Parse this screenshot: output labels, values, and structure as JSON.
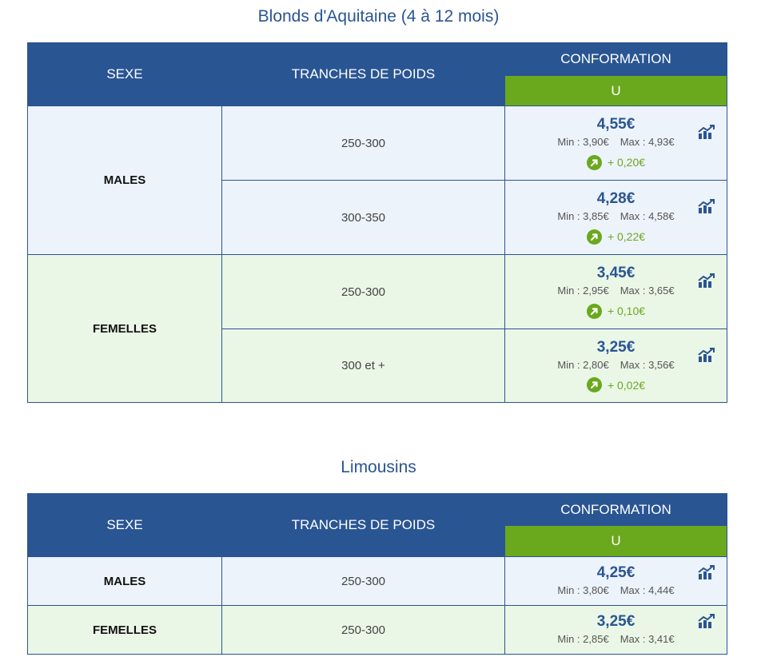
{
  "tables": [
    {
      "title": "Blonds d'Aquitaine (4 à 12 mois)",
      "headers": {
        "sexe": "SEXE",
        "tranches": "TRANCHES DE POIDS",
        "conformation": "CONFORMATION",
        "grade": "U"
      },
      "rows": [
        {
          "sexe": "MALES",
          "tranche": "250-300",
          "price": "4,55€",
          "min": "Min : 3,90€",
          "max": "Max : 4,93€",
          "change": "+ 0,20€"
        },
        {
          "sexe": "",
          "tranche": "300-350",
          "price": "4,28€",
          "min": "Min : 3,85€",
          "max": "Max : 4,58€",
          "change": "+ 0,22€"
        },
        {
          "sexe": "FEMELLES",
          "tranche": "250-300",
          "price": "3,45€",
          "min": "Min : 2,95€",
          "max": "Max : 3,65€",
          "change": "+ 0,10€"
        },
        {
          "sexe": "",
          "tranche": "300 et +",
          "price": "3,25€",
          "min": "Min : 2,80€",
          "max": "Max : 3,56€",
          "change": "+ 0,02€"
        }
      ]
    },
    {
      "title": "Limousins",
      "headers": {
        "sexe": "SEXE",
        "tranches": "TRANCHES DE POIDS",
        "conformation": "CONFORMATION",
        "grade": "U"
      },
      "rows": [
        {
          "sexe": "MALES",
          "tranche": "250-300",
          "price": "4,25€",
          "min": "Min : 3,80€",
          "max": "Max : 4,44€"
        },
        {
          "sexe": "FEMELLES",
          "tranche": "250-300",
          "price": "3,25€",
          "min": "Min : 2,85€",
          "max": "Max : 3,41€"
        }
      ]
    }
  ],
  "icons": {
    "trend": "up-arrow-circle-icon",
    "chart": "chart-trend-icon"
  },
  "colors": {
    "header_blue": "#2a5593",
    "accent_green": "#6aa81e",
    "male_bg": "#edf3fa",
    "female_bg": "#eaf7e6"
  }
}
